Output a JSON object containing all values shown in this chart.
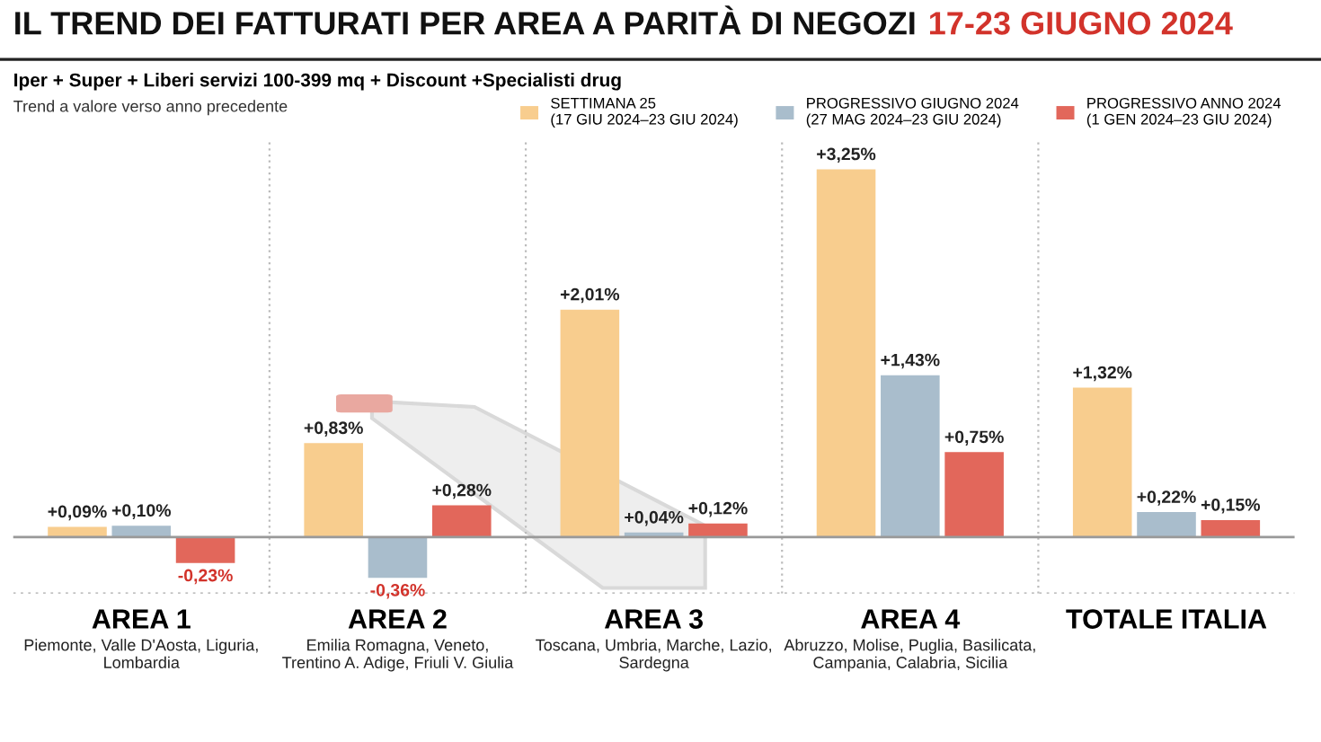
{
  "chart_data": {
    "type": "bar",
    "title": "IL TREND DEI FATTURATI PER AREA A PARITÀ DI NEGOZI",
    "subtitle": "Iper + Super + Liberi servizi 100-399 mq + Discount +Specialisti drug",
    "annotations": [
      "17-23 GIUGNO 2024",
      "Trend a valore verso anno precedente",
      "Piemonte, Valle D'Aosta, Liguria,\nLombardia",
      "Emilia Romagna, Veneto,\nTrentino A. Adige, Friuli V. Giulia",
      "Toscana, Umbria, Marche, Lazio,\nSardegna",
      "Abruzzo, Molise, Puglia, Basilicata,\nCampania, Calabria, Sicilia"
    ],
    "categories": [
      "AREA 1",
      "AREA 2",
      "AREA 3",
      "AREA 4",
      "TOTALE ITALIA"
    ],
    "series": [
      {
        "name": "SETTIMANA 25\n(17 GIU 2024–23 GIU 2024)",
        "color": "#f8cd8e",
        "values": [
          0.09,
          0.83,
          2.01,
          3.25,
          1.32
        ],
        "value_labels": [
          "+0,09%",
          "+0,83%",
          "+2,01%",
          "+3,25%",
          "+1,32%"
        ]
      },
      {
        "name": "PROGRESSIVO GIUGNO 2024\n(27 MAG 2024–23 GIU 2024)",
        "color": "#a9bdcc",
        "values": [
          0.1,
          -0.36,
          0.04,
          1.43,
          0.22
        ],
        "value_labels": [
          "+0,10%",
          "-0,36%",
          "+0,04%",
          "+1,43%",
          "+0,22%"
        ]
      },
      {
        "name": "PROGRESSIVO ANNO 2024\n(1 GEN 2024–23 GIU 2024)",
        "color": "#e2675b",
        "values": [
          -0.23,
          0.28,
          0.12,
          0.75,
          0.15
        ],
        "value_labels": [
          "-0,23%",
          "+0,28%",
          "+0,12%",
          "+0,75%",
          "+0,15%"
        ]
      }
    ],
    "ylim": [
      -0.5,
      3.5
    ],
    "tick_labels": "x",
    "grid": false,
    "legend": "top right"
  }
}
